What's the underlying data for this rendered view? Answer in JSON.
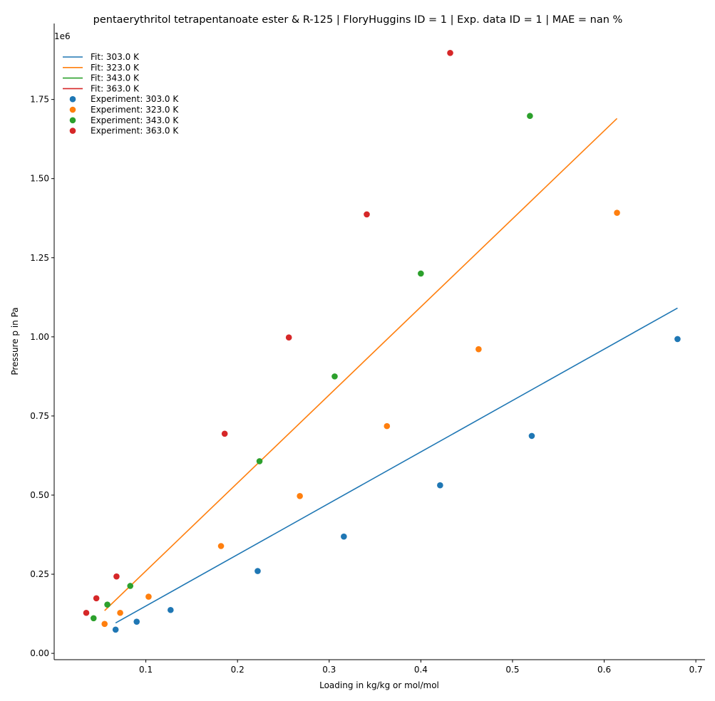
{
  "chart_data": {
    "type": "scatter",
    "title": "pentaerythritol tetrapentanoate ester  & R-125 | FloryHuggins ID = 1 | Exp. data ID = 1 | MAE = nan %",
    "xlabel": "Loading in kg/kg or mol/mol",
    "ylabel": "Pressure p in Pa",
    "y_offset_label": "1e6",
    "xlim": [
      0.0,
      0.71
    ],
    "ylim": [
      -0.02,
      1.99
    ],
    "x_ticks": [
      0.1,
      0.2,
      0.3,
      0.4,
      0.5,
      0.6,
      0.7
    ],
    "x_tick_labels": [
      "0.1",
      "0.2",
      "0.3",
      "0.4",
      "0.5",
      "0.6",
      "0.7"
    ],
    "y_ticks": [
      0.0,
      0.25,
      0.5,
      0.75,
      1.0,
      1.25,
      1.5,
      1.75
    ],
    "y_tick_labels": [
      "0.00",
      "0.25",
      "0.50",
      "0.75",
      "1.00",
      "1.25",
      "1.50",
      "1.75"
    ],
    "grid": false,
    "legend_position": "top-left",
    "fits": [
      {
        "name": "Fit: 303.0 K",
        "color": "#1f77b4",
        "x": [
          0.067,
          0.68
        ],
        "y": [
          0.096,
          1.091
        ]
      },
      {
        "name": "Fit: 323.0 K",
        "color": "#ff7f0e",
        "x": [
          0.055,
          0.614
        ],
        "y": [
          0.135,
          1.69
        ]
      },
      {
        "name": "Fit: 343.0 K",
        "color": "#2ca02c",
        "x": [],
        "y": []
      },
      {
        "name": "Fit: 363.0 K",
        "color": "#d62728",
        "x": [],
        "y": []
      }
    ],
    "series": [
      {
        "name": "Experiment: 303.0 K",
        "color": "#1f77b4",
        "x": [
          0.067,
          0.09,
          0.127,
          0.222,
          0.316,
          0.421,
          0.521,
          0.68
        ],
        "y": [
          0.075,
          0.1,
          0.137,
          0.26,
          0.369,
          0.531,
          0.687,
          0.993
        ]
      },
      {
        "name": "Experiment: 323.0 K",
        "color": "#ff7f0e",
        "x": [
          0.055,
          0.072,
          0.103,
          0.182,
          0.268,
          0.363,
          0.463,
          0.614
        ],
        "y": [
          0.093,
          0.128,
          0.179,
          0.339,
          0.497,
          0.718,
          0.961,
          1.392
        ]
      },
      {
        "name": "Experiment: 343.0 K",
        "color": "#2ca02c",
        "x": [
          0.043,
          0.058,
          0.083,
          0.224,
          0.306,
          0.4,
          0.519
        ],
        "y": [
          0.111,
          0.154,
          0.213,
          0.607,
          0.875,
          1.2,
          1.698
        ]
      },
      {
        "name": "Experiment: 363.0 K",
        "color": "#d62728",
        "x": [
          0.035,
          0.046,
          0.068,
          0.186,
          0.256,
          0.341,
          0.432
        ],
        "y": [
          0.128,
          0.174,
          0.243,
          0.694,
          0.998,
          1.387,
          1.897
        ]
      }
    ]
  }
}
